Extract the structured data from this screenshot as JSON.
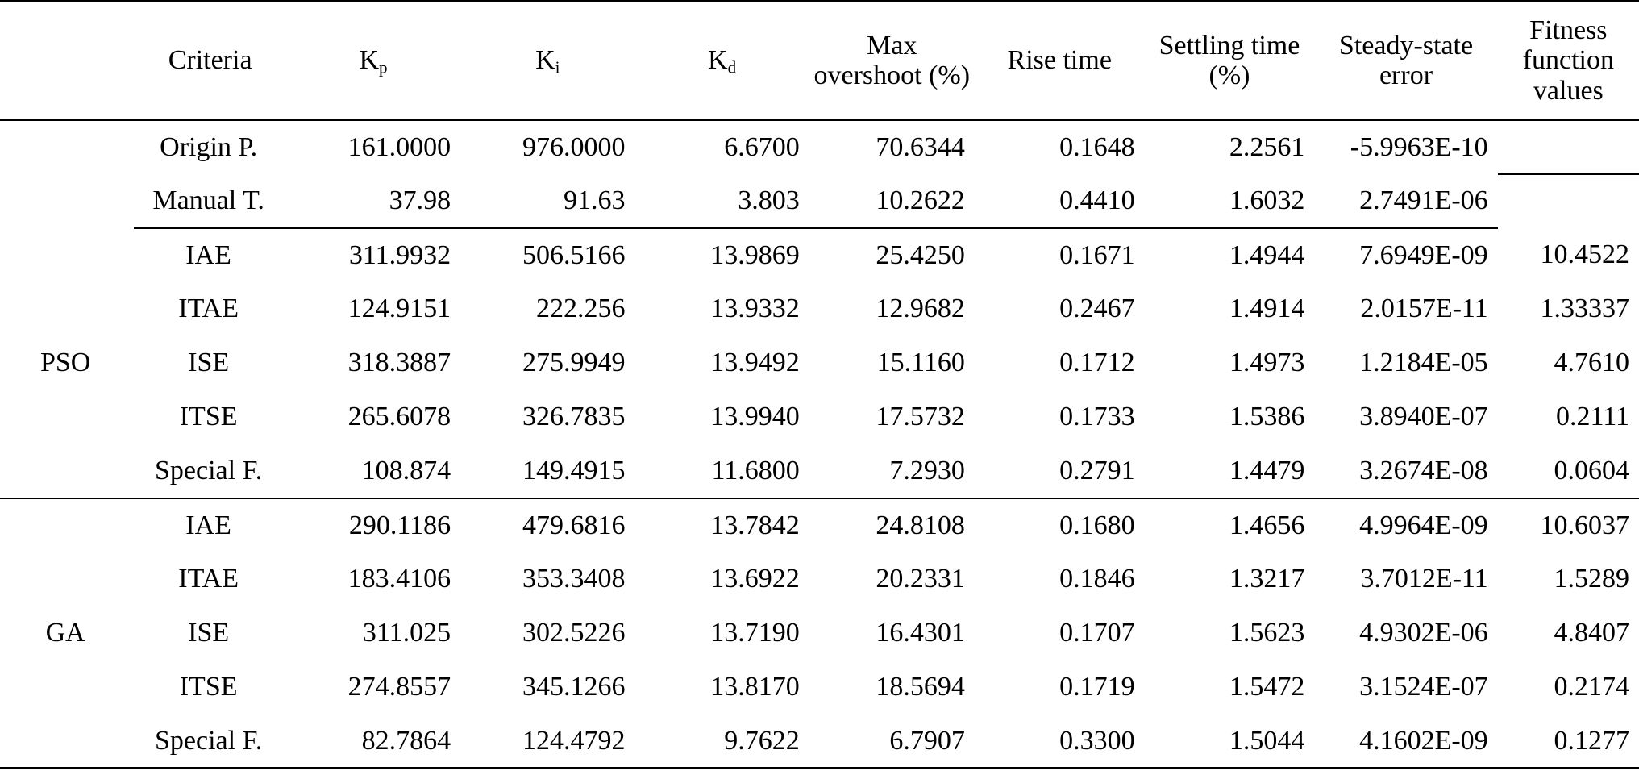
{
  "table": {
    "headers": [
      {
        "main": "",
        "sub": ""
      },
      {
        "main": "Criteria",
        "sub": ""
      },
      {
        "main": "K",
        "sub": "p"
      },
      {
        "main": "K",
        "sub": "i"
      },
      {
        "main": "K",
        "sub": "d"
      },
      {
        "main": "Max overshoot (%)",
        "sub": ""
      },
      {
        "main": "Rise time",
        "sub": ""
      },
      {
        "main": "Settling time (%)",
        "sub": ""
      },
      {
        "main": "Steady-state error",
        "sub": ""
      },
      {
        "main": "Fitness function values",
        "sub": ""
      }
    ],
    "baseline": [
      {
        "criteria": "Origin P.",
        "kp": "161.0000",
        "ki": "976.0000",
        "kd": "6.6700",
        "overshoot": "70.6344",
        "rise": "0.1648",
        "settling": "2.2561",
        "sse": "-5.9963E-10",
        "fitness": ""
      },
      {
        "criteria": "Manual T.",
        "kp": "37.98",
        "ki": "91.63",
        "kd": "3.803",
        "overshoot": "10.2622",
        "rise": "0.4410",
        "settling": "1.6032",
        "sse": "2.7491E-06",
        "fitness": ""
      }
    ],
    "pso": {
      "method": "PSO",
      "rows": [
        {
          "criteria": "IAE",
          "kp": "311.9932",
          "ki": "506.5166",
          "kd": "13.9869",
          "overshoot": "25.4250",
          "rise": "0.1671",
          "settling": "1.4944",
          "sse": "7.6949E-09",
          "fitness": "10.4522"
        },
        {
          "criteria": "ITAE",
          "kp": "124.9151",
          "ki": "222.256",
          "kd": "13.9332",
          "overshoot": "12.9682",
          "rise": "0.2467",
          "settling": "1.4914",
          "sse": "2.0157E-11",
          "fitness": "1.33337"
        },
        {
          "criteria": "ISE",
          "kp": "318.3887",
          "ki": "275.9949",
          "kd": "13.9492",
          "overshoot": "15.1160",
          "rise": "0.1712",
          "settling": "1.4973",
          "sse": "1.2184E-05",
          "fitness": "4.7610"
        },
        {
          "criteria": "ITSE",
          "kp": "265.6078",
          "ki": "326.7835",
          "kd": "13.9940",
          "overshoot": "17.5732",
          "rise": "0.1733",
          "settling": "1.5386",
          "sse": "3.8940E-07",
          "fitness": "0.2111"
        },
        {
          "criteria": "Special F.",
          "kp": "108.874",
          "ki": "149.4915",
          "kd": "11.6800",
          "overshoot": "7.2930",
          "rise": "0.2791",
          "settling": "1.4479",
          "sse": "3.2674E-08",
          "fitness": "0.0604"
        }
      ]
    },
    "ga": {
      "method": "GA",
      "rows": [
        {
          "criteria": "IAE",
          "kp": "290.1186",
          "ki": "479.6816",
          "kd": "13.7842",
          "overshoot": "24.8108",
          "rise": "0.1680",
          "settling": "1.4656",
          "sse": "4.9964E-09",
          "fitness": "10.6037"
        },
        {
          "criteria": "ITAE",
          "kp": "183.4106",
          "ki": "353.3408",
          "kd": "13.6922",
          "overshoot": "20.2331",
          "rise": "0.1846",
          "settling": "1.3217",
          "sse": "3.7012E-11",
          "fitness": "1.5289"
        },
        {
          "criteria": "ISE",
          "kp": "311.025",
          "ki": "302.5226",
          "kd": "13.7190",
          "overshoot": "16.4301",
          "rise": "0.1707",
          "settling": "1.5623",
          "sse": "4.9302E-06",
          "fitness": "4.8407"
        },
        {
          "criteria": "ITSE",
          "kp": "274.8557",
          "ki": "345.1266",
          "kd": "13.8170",
          "overshoot": "18.5694",
          "rise": "0.1719",
          "settling": "1.5472",
          "sse": "3.1524E-07",
          "fitness": "0.2174"
        },
        {
          "criteria": "Special F.",
          "kp": "82.7864",
          "ki": "124.4792",
          "kd": "9.7622",
          "overshoot": "6.7907",
          "rise": "0.3300",
          "settling": "1.5044",
          "sse": "4.1602E-09",
          "fitness": "0.1277"
        }
      ]
    }
  }
}
